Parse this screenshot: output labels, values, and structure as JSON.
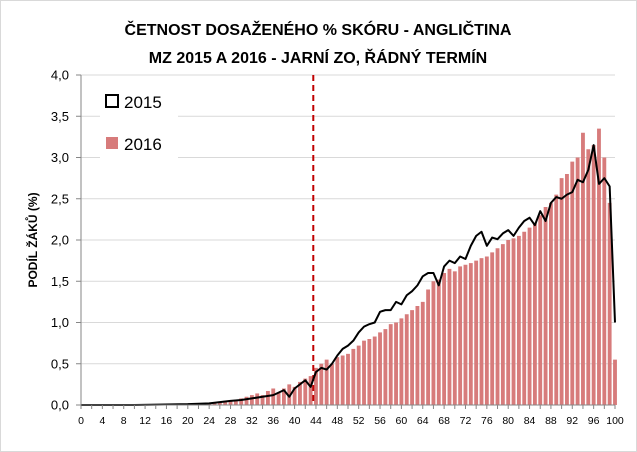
{
  "chart_data": {
    "type": "bar",
    "title_lines": [
      "ČETNOST DOSAŽENÉHO % SKÓRU - ANGLIČTINA",
      "MZ 2015 A 2016 - JARNÍ ZO, ŘÁDNÝ TERMÍN"
    ],
    "xlabel": "",
    "ylabel": "PODÍL ŽÁKŮ (%)",
    "ylim": [
      0,
      4
    ],
    "yticks": [
      "0,0",
      "0,5",
      "1,0",
      "1,5",
      "2,0",
      "2,5",
      "3,0",
      "3,5",
      "4,0"
    ],
    "xlim": [
      0,
      100
    ],
    "xticks": [
      "0",
      "4",
      "8",
      "12",
      "16",
      "20",
      "24",
      "28",
      "32",
      "36",
      "40",
      "44",
      "48",
      "52",
      "56",
      "60",
      "64",
      "68",
      "72",
      "76",
      "80",
      "84",
      "88",
      "92",
      "96",
      "100"
    ],
    "grid": "horizontal",
    "legend_position": "top-left",
    "reference_line": {
      "x": 43.5,
      "color": "#c00000",
      "style": "dashed"
    },
    "series": [
      {
        "name": "2015",
        "kind": "line",
        "color": "#000000",
        "points": [
          [
            0,
            0.0
          ],
          [
            10,
            0.0
          ],
          [
            20,
            0.01
          ],
          [
            24,
            0.02
          ],
          [
            28,
            0.05
          ],
          [
            30,
            0.06
          ],
          [
            32,
            0.08
          ],
          [
            34,
            0.1
          ],
          [
            36,
            0.12
          ],
          [
            38,
            0.18
          ],
          [
            39,
            0.1
          ],
          [
            40,
            0.2
          ],
          [
            41,
            0.25
          ],
          [
            42,
            0.3
          ],
          [
            43,
            0.22
          ],
          [
            44,
            0.4
          ],
          [
            45,
            0.45
          ],
          [
            46,
            0.43
          ],
          [
            47,
            0.5
          ],
          [
            48,
            0.6
          ],
          [
            49,
            0.68
          ],
          [
            50,
            0.72
          ],
          [
            51,
            0.78
          ],
          [
            52,
            0.88
          ],
          [
            53,
            0.95
          ],
          [
            54,
            0.98
          ],
          [
            55,
            1.0
          ],
          [
            56,
            1.13
          ],
          [
            57,
            1.15
          ],
          [
            58,
            1.15
          ],
          [
            59,
            1.25
          ],
          [
            60,
            1.22
          ],
          [
            61,
            1.33
          ],
          [
            62,
            1.38
          ],
          [
            63,
            1.45
          ],
          [
            64,
            1.56
          ],
          [
            65,
            1.6
          ],
          [
            66,
            1.6
          ],
          [
            67,
            1.45
          ],
          [
            68,
            1.68
          ],
          [
            69,
            1.75
          ],
          [
            70,
            1.72
          ],
          [
            71,
            1.8
          ],
          [
            72,
            1.77
          ],
          [
            73,
            1.93
          ],
          [
            74,
            2.05
          ],
          [
            75,
            2.1
          ],
          [
            76,
            1.93
          ],
          [
            77,
            2.03
          ],
          [
            78,
            2.01
          ],
          [
            79,
            2.08
          ],
          [
            80,
            2.12
          ],
          [
            81,
            2.05
          ],
          [
            82,
            2.15
          ],
          [
            83,
            2.23
          ],
          [
            84,
            2.27
          ],
          [
            85,
            2.18
          ],
          [
            86,
            2.35
          ],
          [
            87,
            2.23
          ],
          [
            88,
            2.45
          ],
          [
            89,
            2.52
          ],
          [
            90,
            2.5
          ],
          [
            91,
            2.55
          ],
          [
            92,
            2.58
          ],
          [
            93,
            2.73
          ],
          [
            94,
            2.7
          ],
          [
            95,
            2.85
          ],
          [
            96,
            3.15
          ],
          [
            97,
            2.68
          ],
          [
            98,
            2.75
          ],
          [
            99,
            2.65
          ],
          [
            100,
            1.0
          ]
        ]
      },
      {
        "name": "2016",
        "kind": "bar",
        "color": "#d77b7b",
        "x": [
          0,
          1,
          2,
          3,
          4,
          5,
          6,
          7,
          8,
          9,
          10,
          11,
          12,
          13,
          14,
          15,
          16,
          17,
          18,
          19,
          20,
          21,
          22,
          23,
          24,
          25,
          26,
          27,
          28,
          29,
          30,
          31,
          32,
          33,
          34,
          35,
          36,
          37,
          38,
          39,
          40,
          41,
          42,
          43,
          44,
          45,
          46,
          47,
          48,
          49,
          50,
          51,
          52,
          53,
          54,
          55,
          56,
          57,
          58,
          59,
          60,
          61,
          62,
          63,
          64,
          65,
          66,
          67,
          68,
          69,
          70,
          71,
          72,
          73,
          74,
          75,
          76,
          77,
          78,
          79,
          80,
          81,
          82,
          83,
          84,
          85,
          86,
          87,
          88,
          89,
          90,
          91,
          92,
          93,
          94,
          95,
          96,
          97,
          98,
          99,
          100
        ],
        "values": [
          0.0,
          0.0,
          0.0,
          0.0,
          0.0,
          0.0,
          0.0,
          0.0,
          0.0,
          0.0,
          0.0,
          0.0,
          0.0,
          0.0,
          0.0,
          0.0,
          0.0,
          0.0,
          0.0,
          0.0,
          0.0,
          0.0,
          0.0,
          0.0,
          0.02,
          0.02,
          0.04,
          0.05,
          0.06,
          0.06,
          0.08,
          0.1,
          0.12,
          0.14,
          0.12,
          0.17,
          0.2,
          0.15,
          0.2,
          0.25,
          0.22,
          0.28,
          0.32,
          0.35,
          0.45,
          0.5,
          0.55,
          0.5,
          0.58,
          0.6,
          0.62,
          0.68,
          0.72,
          0.78,
          0.8,
          0.83,
          0.88,
          0.92,
          0.98,
          1.0,
          1.05,
          1.1,
          1.15,
          1.2,
          1.25,
          1.4,
          1.5,
          1.52,
          1.6,
          1.65,
          1.62,
          1.68,
          1.7,
          1.72,
          1.75,
          1.78,
          1.8,
          1.85,
          1.9,
          1.95,
          2.0,
          2.02,
          2.05,
          2.1,
          2.15,
          2.2,
          2.3,
          2.4,
          2.45,
          2.55,
          2.75,
          2.8,
          2.95,
          3.0,
          3.3,
          3.1,
          3.15,
          3.35,
          3.0,
          2.45,
          0.55
        ]
      }
    ]
  }
}
